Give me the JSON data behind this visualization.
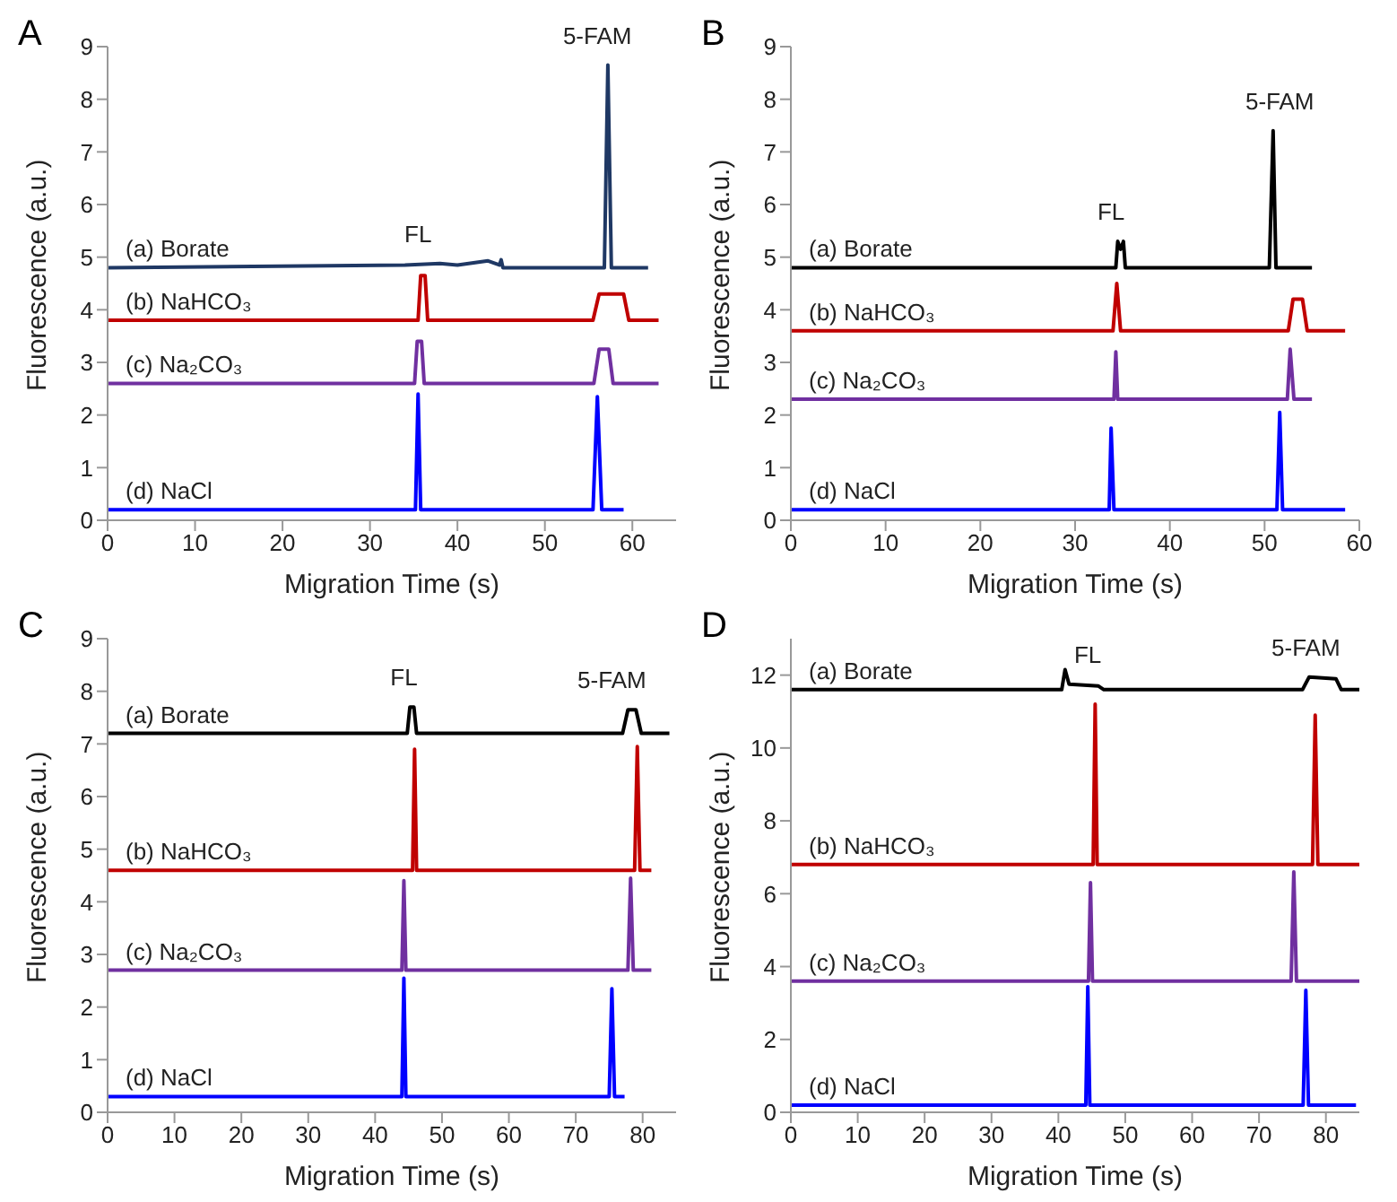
{
  "chart_data": [
    {
      "type": "line",
      "title": "A",
      "xlabel": "Migration Time (s)",
      "ylabel": "Fluorescence (a.u.)",
      "xlim": [
        0,
        65
      ],
      "xticks": [
        0,
        10,
        20,
        30,
        40,
        50,
        60
      ],
      "ylim": [
        0,
        9
      ],
      "yticks": [
        0,
        1,
        2,
        3,
        4,
        5,
        6,
        7,
        8,
        9
      ],
      "annotations": [
        "FL",
        "5-FAM"
      ],
      "series": [
        {
          "name": "(a) Borate",
          "color": "#1f3864",
          "x": [
            0,
            34,
            38,
            40,
            43.5,
            44.8,
            45,
            45.2,
            56.8,
            57.2,
            57.6,
            61.8
          ],
          "values": [
            4.8,
            4.85,
            4.88,
            4.85,
            4.93,
            4.85,
            4.95,
            4.8,
            4.8,
            8.65,
            4.8,
            4.8
          ]
        },
        {
          "name": "(b) NaHCO₃",
          "color": "#c00000",
          "x": [
            0,
            35.5,
            35.8,
            36.3,
            36.6,
            55.5,
            56.2,
            59,
            59.6,
            63
          ],
          "values": [
            3.8,
            3.8,
            4.65,
            4.65,
            3.8,
            3.8,
            4.3,
            4.3,
            3.8,
            3.8
          ]
        },
        {
          "name": "(c) Na₂CO₃",
          "color": "#7030a0",
          "x": [
            0,
            35.1,
            35.4,
            35.9,
            36.2,
            55.6,
            56.2,
            57.3,
            57.8,
            63
          ],
          "values": [
            2.6,
            2.6,
            3.4,
            3.4,
            2.6,
            2.6,
            3.25,
            3.25,
            2.6,
            2.6
          ]
        },
        {
          "name": "(d) NaCl",
          "color": "#0000ff",
          "x": [
            0,
            35.2,
            35.5,
            35.8,
            55.5,
            56,
            56.5,
            59
          ],
          "values": [
            0.2,
            0.2,
            2.4,
            0.2,
            0.2,
            2.35,
            0.2,
            0.2
          ]
        }
      ]
    },
    {
      "type": "line",
      "title": "B",
      "xlabel": "Migration Time (s)",
      "ylabel": "Fluorescence (a.u.)",
      "xlim": [
        0,
        60
      ],
      "xticks": [
        0,
        10,
        20,
        30,
        40,
        50,
        60
      ],
      "ylim": [
        0,
        9
      ],
      "yticks": [
        0,
        1,
        2,
        3,
        4,
        5,
        6,
        7,
        8,
        9
      ],
      "annotations": [
        "FL",
        "5-FAM"
      ],
      "series": [
        {
          "name": "(a) Borate",
          "color": "#000000",
          "x": [
            0,
            34.3,
            34.5,
            34.8,
            35.1,
            35.3,
            50.5,
            50.9,
            51.2,
            55
          ],
          "values": [
            4.8,
            4.8,
            5.3,
            5.15,
            5.3,
            4.8,
            4.8,
            7.4,
            4.8,
            4.8
          ]
        },
        {
          "name": "(b) NaHCO₃",
          "color": "#c00000",
          "x": [
            0,
            34,
            34.4,
            34.8,
            52.5,
            53,
            54,
            54.5,
            58.5
          ],
          "values": [
            3.6,
            3.6,
            4.5,
            3.6,
            3.6,
            4.2,
            4.2,
            3.6,
            3.6
          ]
        },
        {
          "name": "(c) Na₂CO₃",
          "color": "#7030a0",
          "x": [
            0,
            34.1,
            34.3,
            34.5,
            52.4,
            52.7,
            53.1,
            55
          ],
          "values": [
            2.3,
            2.3,
            3.2,
            2.3,
            2.3,
            3.25,
            2.3,
            2.3
          ]
        },
        {
          "name": "(d) NaCl",
          "color": "#0000ff",
          "x": [
            0,
            33.6,
            33.8,
            34.1,
            51.3,
            51.6,
            51.9,
            58.5
          ],
          "values": [
            0.2,
            0.2,
            1.75,
            0.2,
            0.2,
            2.05,
            0.2,
            0.2
          ]
        }
      ]
    },
    {
      "type": "line",
      "title": "C",
      "xlabel": "Migration Time (s)",
      "ylabel": "Fluorescence (a.u.)",
      "xlim": [
        0,
        85
      ],
      "xticks": [
        0,
        10,
        20,
        30,
        40,
        50,
        60,
        70,
        80
      ],
      "ylim": [
        0,
        9
      ],
      "yticks": [
        0,
        1,
        2,
        3,
        4,
        5,
        6,
        7,
        8,
        9
      ],
      "annotations": [
        "FL",
        "5-FAM"
      ],
      "series": [
        {
          "name": "(a) Borate",
          "color": "#000000",
          "x": [
            0,
            44.8,
            45.2,
            45.8,
            46.2,
            77,
            77.8,
            79,
            79.8,
            84
          ],
          "values": [
            7.2,
            7.2,
            7.7,
            7.7,
            7.2,
            7.2,
            7.65,
            7.65,
            7.2,
            7.2
          ]
        },
        {
          "name": "(b) NaHCO₃",
          "color": "#c00000",
          "x": [
            0,
            45.6,
            45.9,
            46.2,
            78.8,
            79.2,
            79.6,
            81.3
          ],
          "values": [
            4.6,
            4.6,
            6.9,
            4.6,
            4.6,
            6.95,
            4.6,
            4.6
          ]
        },
        {
          "name": "(c) Na₂CO₃",
          "color": "#7030a0",
          "x": [
            0,
            44,
            44.3,
            44.6,
            77.8,
            78.2,
            78.6,
            81.3
          ],
          "values": [
            2.7,
            2.7,
            4.4,
            2.7,
            2.7,
            4.45,
            2.7,
            2.7
          ]
        },
        {
          "name": "(d) NaCl",
          "color": "#0000ff",
          "x": [
            0,
            44,
            44.3,
            44.6,
            75,
            75.4,
            75.8,
            77.3
          ],
          "values": [
            0.3,
            0.3,
            2.55,
            0.3,
            0.3,
            2.35,
            0.3,
            0.3
          ]
        }
      ]
    },
    {
      "type": "line",
      "title": "D",
      "xlabel": "Migration Time (s)",
      "ylabel": "Fluorescence (a.u.)",
      "xlim": [
        0,
        85
      ],
      "xticks": [
        0,
        10,
        20,
        30,
        40,
        50,
        60,
        70,
        80
      ],
      "ylim": [
        0,
        13
      ],
      "yticks": [
        0,
        2,
        4,
        6,
        8,
        10,
        12
      ],
      "annotations": [
        "FL",
        "5-FAM"
      ],
      "series": [
        {
          "name": "(a) Borate",
          "color": "#000000",
          "x": [
            0,
            40.5,
            41,
            41.6,
            46,
            46.8,
            76.5,
            77.5,
            81.5,
            82.3,
            85
          ],
          "values": [
            11.6,
            11.6,
            12.15,
            11.75,
            11.7,
            11.6,
            11.6,
            11.95,
            11.9,
            11.6,
            11.6
          ]
        },
        {
          "name": "(b) NaHCO₃",
          "color": "#c00000",
          "x": [
            0,
            45.2,
            45.5,
            45.8,
            78,
            78.4,
            78.8,
            85
          ],
          "values": [
            6.8,
            6.8,
            11.2,
            6.8,
            6.8,
            10.9,
            6.8,
            6.8
          ]
        },
        {
          "name": "(c) Na₂CO₃",
          "color": "#7030a0",
          "x": [
            0,
            44.5,
            44.8,
            45.1,
            74.8,
            75.2,
            75.6,
            85
          ],
          "values": [
            3.6,
            3.6,
            6.3,
            3.6,
            3.6,
            6.6,
            3.6,
            3.6
          ]
        },
        {
          "name": "(d) NaCl",
          "color": "#0000ff",
          "x": [
            0,
            44.1,
            44.4,
            44.7,
            76.6,
            77,
            77.4,
            84.5
          ],
          "values": [
            0.2,
            0.2,
            3.45,
            0.2,
            0.2,
            3.35,
            0.2,
            0.2
          ]
        }
      ]
    }
  ]
}
